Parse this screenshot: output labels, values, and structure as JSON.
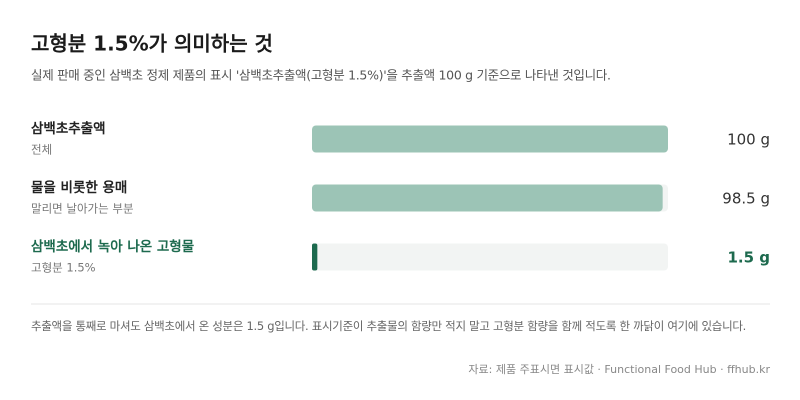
{
  "chart_data": {
    "type": "bar",
    "orientation": "horizontal",
    "title": "고형분 1.5%가 의미하는 것",
    "subtitle": "실제 판매 중인 삼백초 정제 제품의 표시 '삼백초추출액(고형분 1.5%)'을 추출액 100 g 기준으로 나타낸 것입니다.",
    "categories": [
      "삼백초추출액",
      "물을 비롯한 용매",
      "삼백초에서 녹아 나온 고형물"
    ],
    "category_notes": [
      "전체",
      "말리면 날아가는 부분",
      "고형분 1.5%"
    ],
    "values": [
      100,
      98.5,
      1.5
    ],
    "value_labels": [
      "100 g",
      "98.5 g",
      "1.5 g"
    ],
    "colors": [
      "#9cc4b6",
      "#9cc4b6",
      "#1d6a4e"
    ],
    "label_colors": [
      "#222222",
      "#222222",
      "#1d6a4e"
    ],
    "track_color": "#f2f4f3",
    "xlim": [
      0,
      100
    ],
    "footnote": "추출액을 통째로 마셔도 삼백초에서 온 성분은 1.5 g입니다. 표시기준이 추출물의 함량만 적지 말고 고형분 함량을 함께 적도록 한 까닭이 여기에 있습니다.",
    "source": "자료: 제품 주표시면 표시값 · Functional Food Hub · ffhub.kr"
  }
}
